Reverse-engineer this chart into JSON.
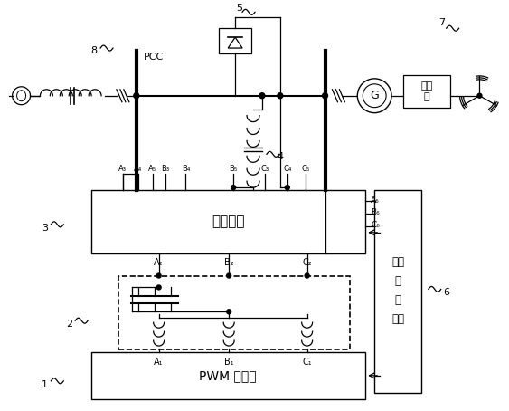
{
  "bg_color": "#ffffff",
  "lc": "#000000",
  "labels": {
    "pcc": "PCC",
    "8": "8",
    "7": "7",
    "6": "6",
    "5": "5",
    "4": "4",
    "3": "3",
    "2": "2",
    "1": "1",
    "box3": "切换装置",
    "box1": "PWM 变换器",
    "pc1": "脉冲",
    "pc2": "控",
    "pc3": "制",
    "pc4": "单元",
    "G": "G",
    "gearbox": "变速\n筱",
    "A3": "A₃",
    "A4": "A₄",
    "A5": "A₅",
    "B3": "B₃",
    "B4": "B₄",
    "B5": "B₅",
    "C3": "C₃",
    "C4": "C₄",
    "C5": "C₅",
    "A6": "A₆",
    "B6": "B₆",
    "C6": "C₆",
    "A2": "A₂",
    "B2": "B₂",
    "C2": "C₂",
    "A1": "A₁",
    "B1": "B₁",
    "C1": "C₁"
  }
}
